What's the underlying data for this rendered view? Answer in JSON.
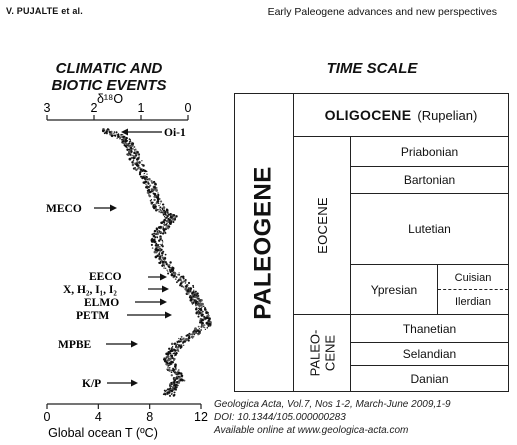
{
  "header": {
    "author": "V. PUJALTE et al.",
    "running_title": "Early Paleogene advances and new perspectives"
  },
  "left_panel": {
    "title_line1": "CLIMATIC AND",
    "title_line2": "BIOTIC EVENTS",
    "isotope_axis_label": "δ¹⁸O",
    "isotope_ticks": [
      "3",
      "2",
      "1",
      "0"
    ],
    "temp_ticks": [
      "0",
      "4",
      "8",
      "12"
    ],
    "temp_axis_label": "Global ocean T (ºC)",
    "events": [
      "Oi-1",
      "MECO",
      "EECO",
      "X, H₂, I₁, I₂",
      "ELMO",
      "PETM",
      "MPBE",
      "K/P"
    ]
  },
  "right_panel": {
    "title": "TIME SCALE",
    "period": "PALEOGENE",
    "oligocene_name": "OLIGOCENE",
    "oligocene_stage": "(Rupelian)",
    "eocene": "EOCENE",
    "paleocene_line1": "PALEO-",
    "paleocene_line2": "CENE",
    "stages": [
      "Priabonian",
      "Bartonian",
      "Lutetian",
      "Ypresian",
      "Cuisian",
      "Ilerdian",
      "Thanetian",
      "Selandian",
      "Danian"
    ]
  },
  "caption": {
    "citation": "Geologica Acta, Vol.7, Nos 1-2, March-June 2009,1-9",
    "doi": "DOI: 10.1344/105.000000283",
    "online": "Available online at www.geologica-acta.com"
  },
  "chart_data": {
    "type": "scatter",
    "title": "",
    "xlabel": "Global ocean T (ºC)",
    "xlim": [
      0,
      12
    ],
    "x2label": "δ¹⁸O",
    "x2lim": [
      3,
      0
    ],
    "ylabel": "",
    "x_ticks": [
      0,
      4,
      8,
      12
    ],
    "x2_ticks": [
      3,
      2,
      1,
      0
    ],
    "series": [
      {
        "values": [
          {
            "depth": 0.0,
            "temp": 4.5
          },
          {
            "depth": 0.03,
            "temp": 6.0
          },
          {
            "depth": 0.06,
            "temp": 6.5
          },
          {
            "depth": 0.1,
            "temp": 6.8
          },
          {
            "depth": 0.15,
            "temp": 7.2
          },
          {
            "depth": 0.2,
            "temp": 8.0
          },
          {
            "depth": 0.25,
            "temp": 8.3
          },
          {
            "depth": 0.3,
            "temp": 8.8
          },
          {
            "depth": 0.33,
            "temp": 9.7
          },
          {
            "depth": 0.36,
            "temp": 9.2
          },
          {
            "depth": 0.4,
            "temp": 8.6
          },
          {
            "depth": 0.45,
            "temp": 8.6
          },
          {
            "depth": 0.5,
            "temp": 9.2
          },
          {
            "depth": 0.55,
            "temp": 10.0
          },
          {
            "depth": 0.6,
            "temp": 11.2
          },
          {
            "depth": 0.63,
            "temp": 11.5
          },
          {
            "depth": 0.66,
            "temp": 11.8
          },
          {
            "depth": 0.7,
            "temp": 12.2
          },
          {
            "depth": 0.74,
            "temp": 12.5
          },
          {
            "depth": 0.78,
            "temp": 11.0
          },
          {
            "depth": 0.82,
            "temp": 10.0
          },
          {
            "depth": 0.86,
            "temp": 9.5
          },
          {
            "depth": 0.9,
            "temp": 9.8
          },
          {
            "depth": 0.94,
            "temp": 10.3
          },
          {
            "depth": 0.97,
            "temp": 9.8
          },
          {
            "depth": 1.0,
            "temp": 9.5
          }
        ]
      }
    ]
  }
}
